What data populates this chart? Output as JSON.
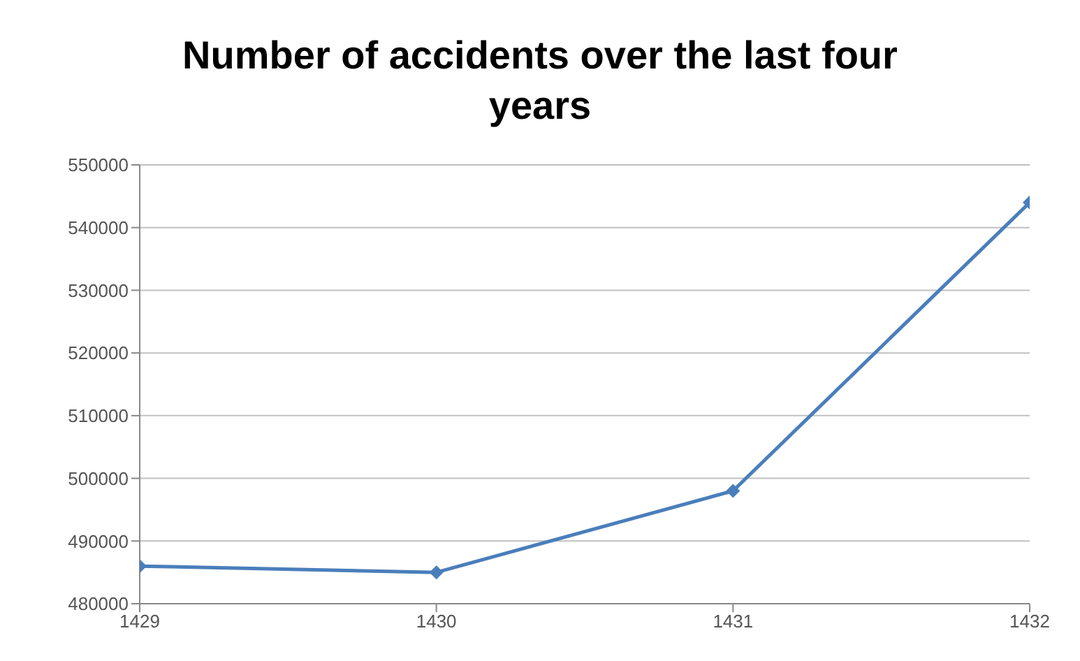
{
  "chart_data": {
    "type": "line",
    "title": "Number of accidents over the last four years",
    "x": [
      1429,
      1430,
      1431,
      1432
    ],
    "series": [
      {
        "color": "#4a7ebb",
        "values": [
          486000,
          485000,
          498000,
          544000
        ]
      }
    ],
    "xlim": [
      1429,
      1432
    ],
    "xticks": [
      1429,
      1430,
      1431,
      1432
    ],
    "ylim": [
      480000,
      550000
    ],
    "yticks": [
      480000,
      490000,
      500000,
      510000,
      520000,
      530000,
      540000,
      550000
    ],
    "grid": "y",
    "legend": false,
    "marker": "diamond",
    "line_style": "solid"
  }
}
